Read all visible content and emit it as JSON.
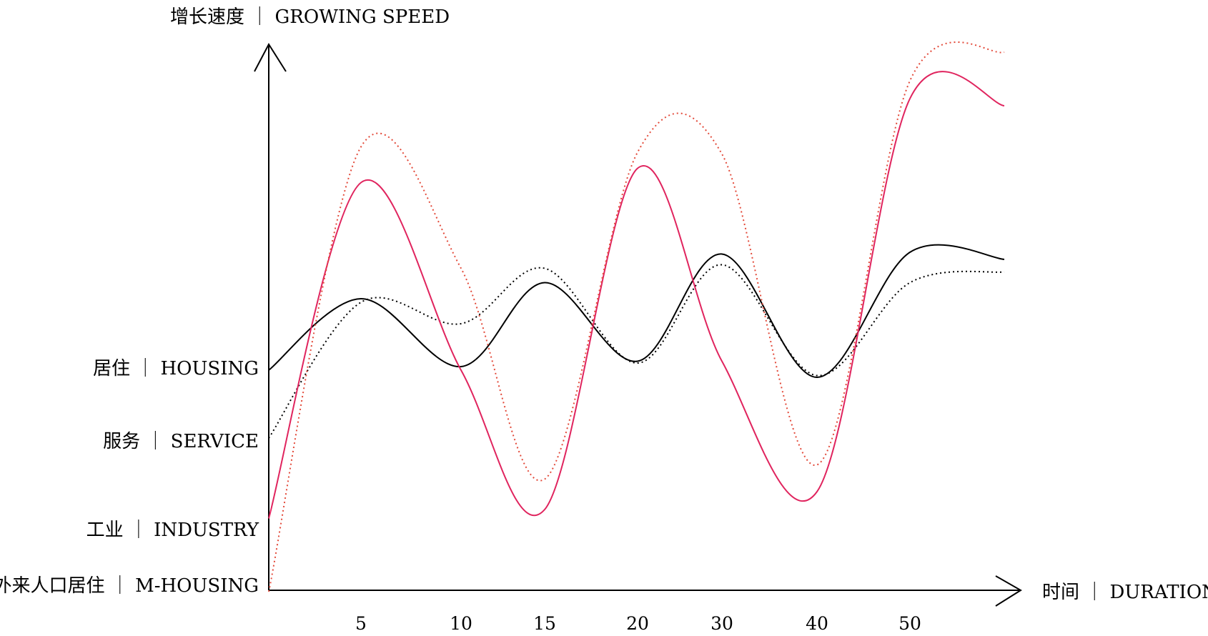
{
  "chart_data": {
    "type": "line",
    "title": "",
    "ylabel": "增长速度 ｜ GROWING SPEED",
    "xlabel": "时间 ｜ DURATION",
    "x_ticks": [
      "5",
      "10",
      "15",
      "20",
      "30",
      "40",
      "50"
    ],
    "y_category_labels": [
      "居住 ｜ HOUSING",
      "服务 ｜ SERVICE",
      "工业 ｜ INDUSTRY",
      "外来人口居住 ｜ M-HOUSING"
    ],
    "grid": false,
    "series": [
      {
        "name": "居住 ｜ HOUSING",
        "style": "solid",
        "color": "#000000",
        "points": [
          [
            0,
            0
          ],
          [
            5,
            0.4
          ],
          [
            10,
            0.02
          ],
          [
            15,
            0.49
          ],
          [
            20,
            0.05
          ],
          [
            30,
            0.65
          ],
          [
            40,
            -0.04
          ],
          [
            50,
            0.66
          ]
        ]
      },
      {
        "name": "服务 ｜ SERVICE",
        "style": "dotted",
        "color": "#000000",
        "points": [
          [
            0,
            -0.38
          ],
          [
            5,
            0.38
          ],
          [
            10,
            0.26
          ],
          [
            15,
            0.57
          ],
          [
            20,
            0.04
          ],
          [
            30,
            0.59
          ],
          [
            40,
            -0.03
          ],
          [
            50,
            0.49
          ]
        ]
      },
      {
        "name": "工业 ｜ INDUSTRY",
        "style": "solid",
        "color": "#e0245e",
        "points": [
          [
            0,
            -0.83
          ],
          [
            5,
            1.05
          ],
          [
            10,
            0
          ],
          [
            15,
            -0.78
          ],
          [
            20,
            1.13
          ],
          [
            30,
            0.05
          ],
          [
            40,
            -0.68
          ],
          [
            50,
            1.52
          ]
        ]
      },
      {
        "name": "外来人口居住 ｜ M-HOUSING",
        "style": "dotted",
        "color": "#e34a3a",
        "points": [
          [
            0,
            -1.24
          ],
          [
            5,
            1.25
          ],
          [
            10,
            0.57
          ],
          [
            15,
            -0.61
          ],
          [
            20,
            1.22
          ],
          [
            30,
            1.21
          ],
          [
            40,
            -0.53
          ],
          [
            50,
            1.62
          ]
        ]
      }
    ]
  }
}
